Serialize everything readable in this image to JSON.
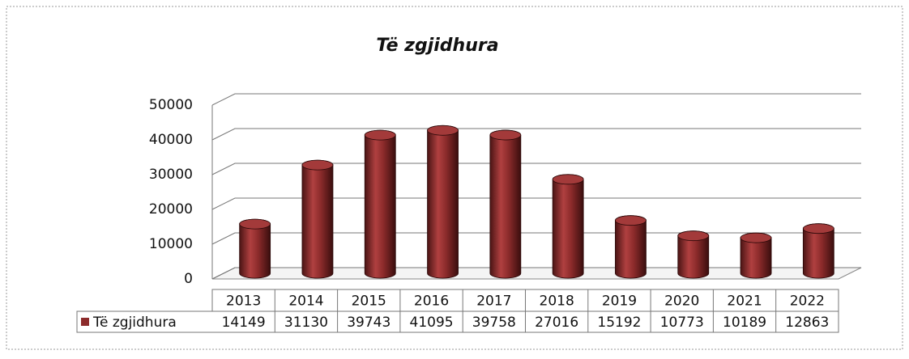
{
  "chart_data": {
    "type": "bar",
    "title": "Të zgjidhura",
    "categories": [
      "2013",
      "2014",
      "2015",
      "2016",
      "2017",
      "2018",
      "2019",
      "2020",
      "2021",
      "2022"
    ],
    "series": [
      {
        "name": "Të zgjidhura",
        "color": "#8c2b2b",
        "values": [
          14149,
          31130,
          39743,
          41095,
          39758,
          27016,
          15192,
          10773,
          10189,
          12863
        ]
      }
    ],
    "ylim": [
      0,
      50000
    ],
    "yticks": [
      0,
      10000,
      20000,
      30000,
      40000,
      50000
    ],
    "grid": true,
    "data_table": true
  }
}
